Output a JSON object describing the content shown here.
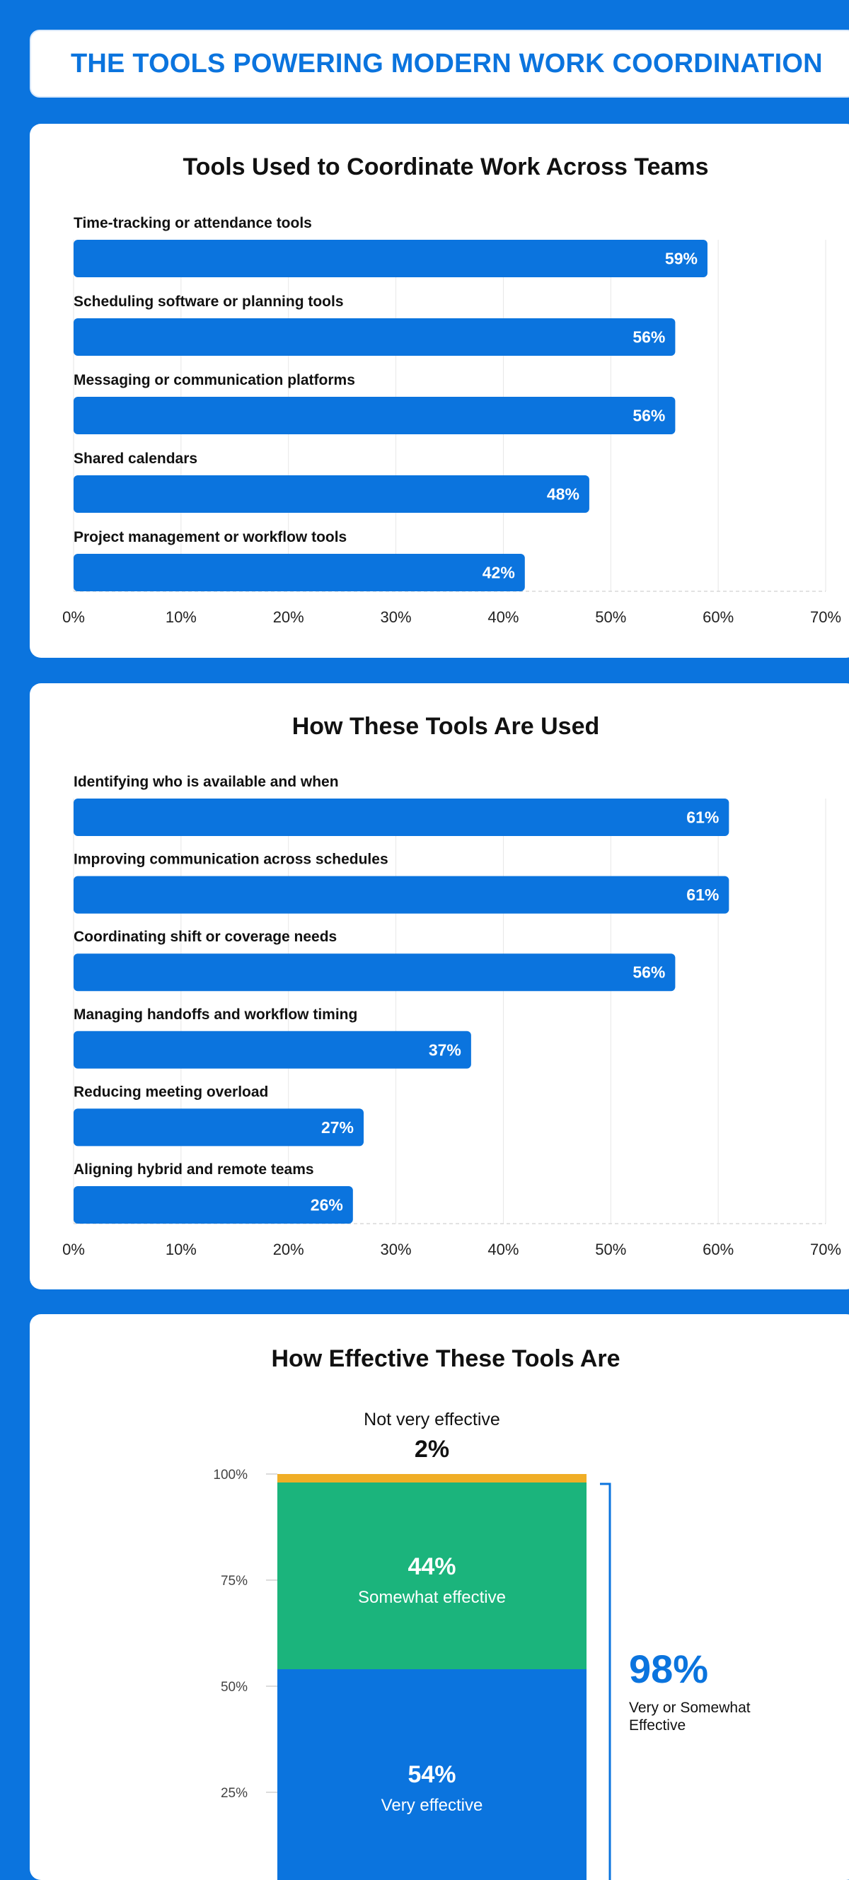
{
  "banner": {
    "title": "THE TOOLS POWERING MODERN WORK COORDINATION"
  },
  "colors": {
    "bar": "#0b74de",
    "very_effective": "#0b74de",
    "somewhat_effective": "#1bb47c",
    "not_very_effective": "#f0ae26",
    "grid": "#e6e6e6"
  },
  "chart_data": [
    {
      "type": "bar",
      "orientation": "horizontal",
      "title": "Tools Used to Coordinate Work Across Teams",
      "categories": [
        "Time-tracking or attendance tools",
        "Scheduling software or planning tools",
        "Messaging or communication platforms",
        "Shared calendars",
        "Project management or workflow tools"
      ],
      "values": [
        59,
        56,
        56,
        48,
        42
      ],
      "value_labels": [
        "59%",
        "56%",
        "56%",
        "48%",
        "42%"
      ],
      "xlim": [
        0,
        70
      ],
      "xticks": [
        "0%",
        "10%",
        "20%",
        "30%",
        "40%",
        "50%",
        "60%",
        "70%"
      ],
      "grid": true
    },
    {
      "type": "bar",
      "orientation": "horizontal",
      "title": "How These Tools Are Used",
      "categories": [
        "Identifying who is available and when",
        "Improving communication across schedules",
        "Coordinating shift or coverage needs",
        "Managing handoffs and workflow timing",
        "Reducing meeting overload",
        "Aligning hybrid and remote teams"
      ],
      "values": [
        61,
        61,
        56,
        37,
        27,
        26
      ],
      "value_labels": [
        "61%",
        "61%",
        "56%",
        "37%",
        "27%",
        "26%"
      ],
      "xlim": [
        0,
        70
      ],
      "xticks": [
        "0%",
        "10%",
        "20%",
        "30%",
        "40%",
        "50%",
        "60%",
        "70%"
      ],
      "grid": true
    },
    {
      "type": "bar",
      "stacked": true,
      "title": "How Effective These Tools Are",
      "ylim": [
        0,
        100
      ],
      "yticks": [
        "25%",
        "50%",
        "75%",
        "100%"
      ],
      "series": [
        {
          "name": "Very effective",
          "value": 54,
          "label": "54%"
        },
        {
          "name": "Somewhat effective",
          "value": 44,
          "label": "44%"
        },
        {
          "name": "Not very effective",
          "value": 2,
          "label": "2%"
        }
      ],
      "annotation": {
        "value": "98%",
        "text_line1": "Very or Somewhat",
        "text_line2": "Effective"
      }
    }
  ]
}
